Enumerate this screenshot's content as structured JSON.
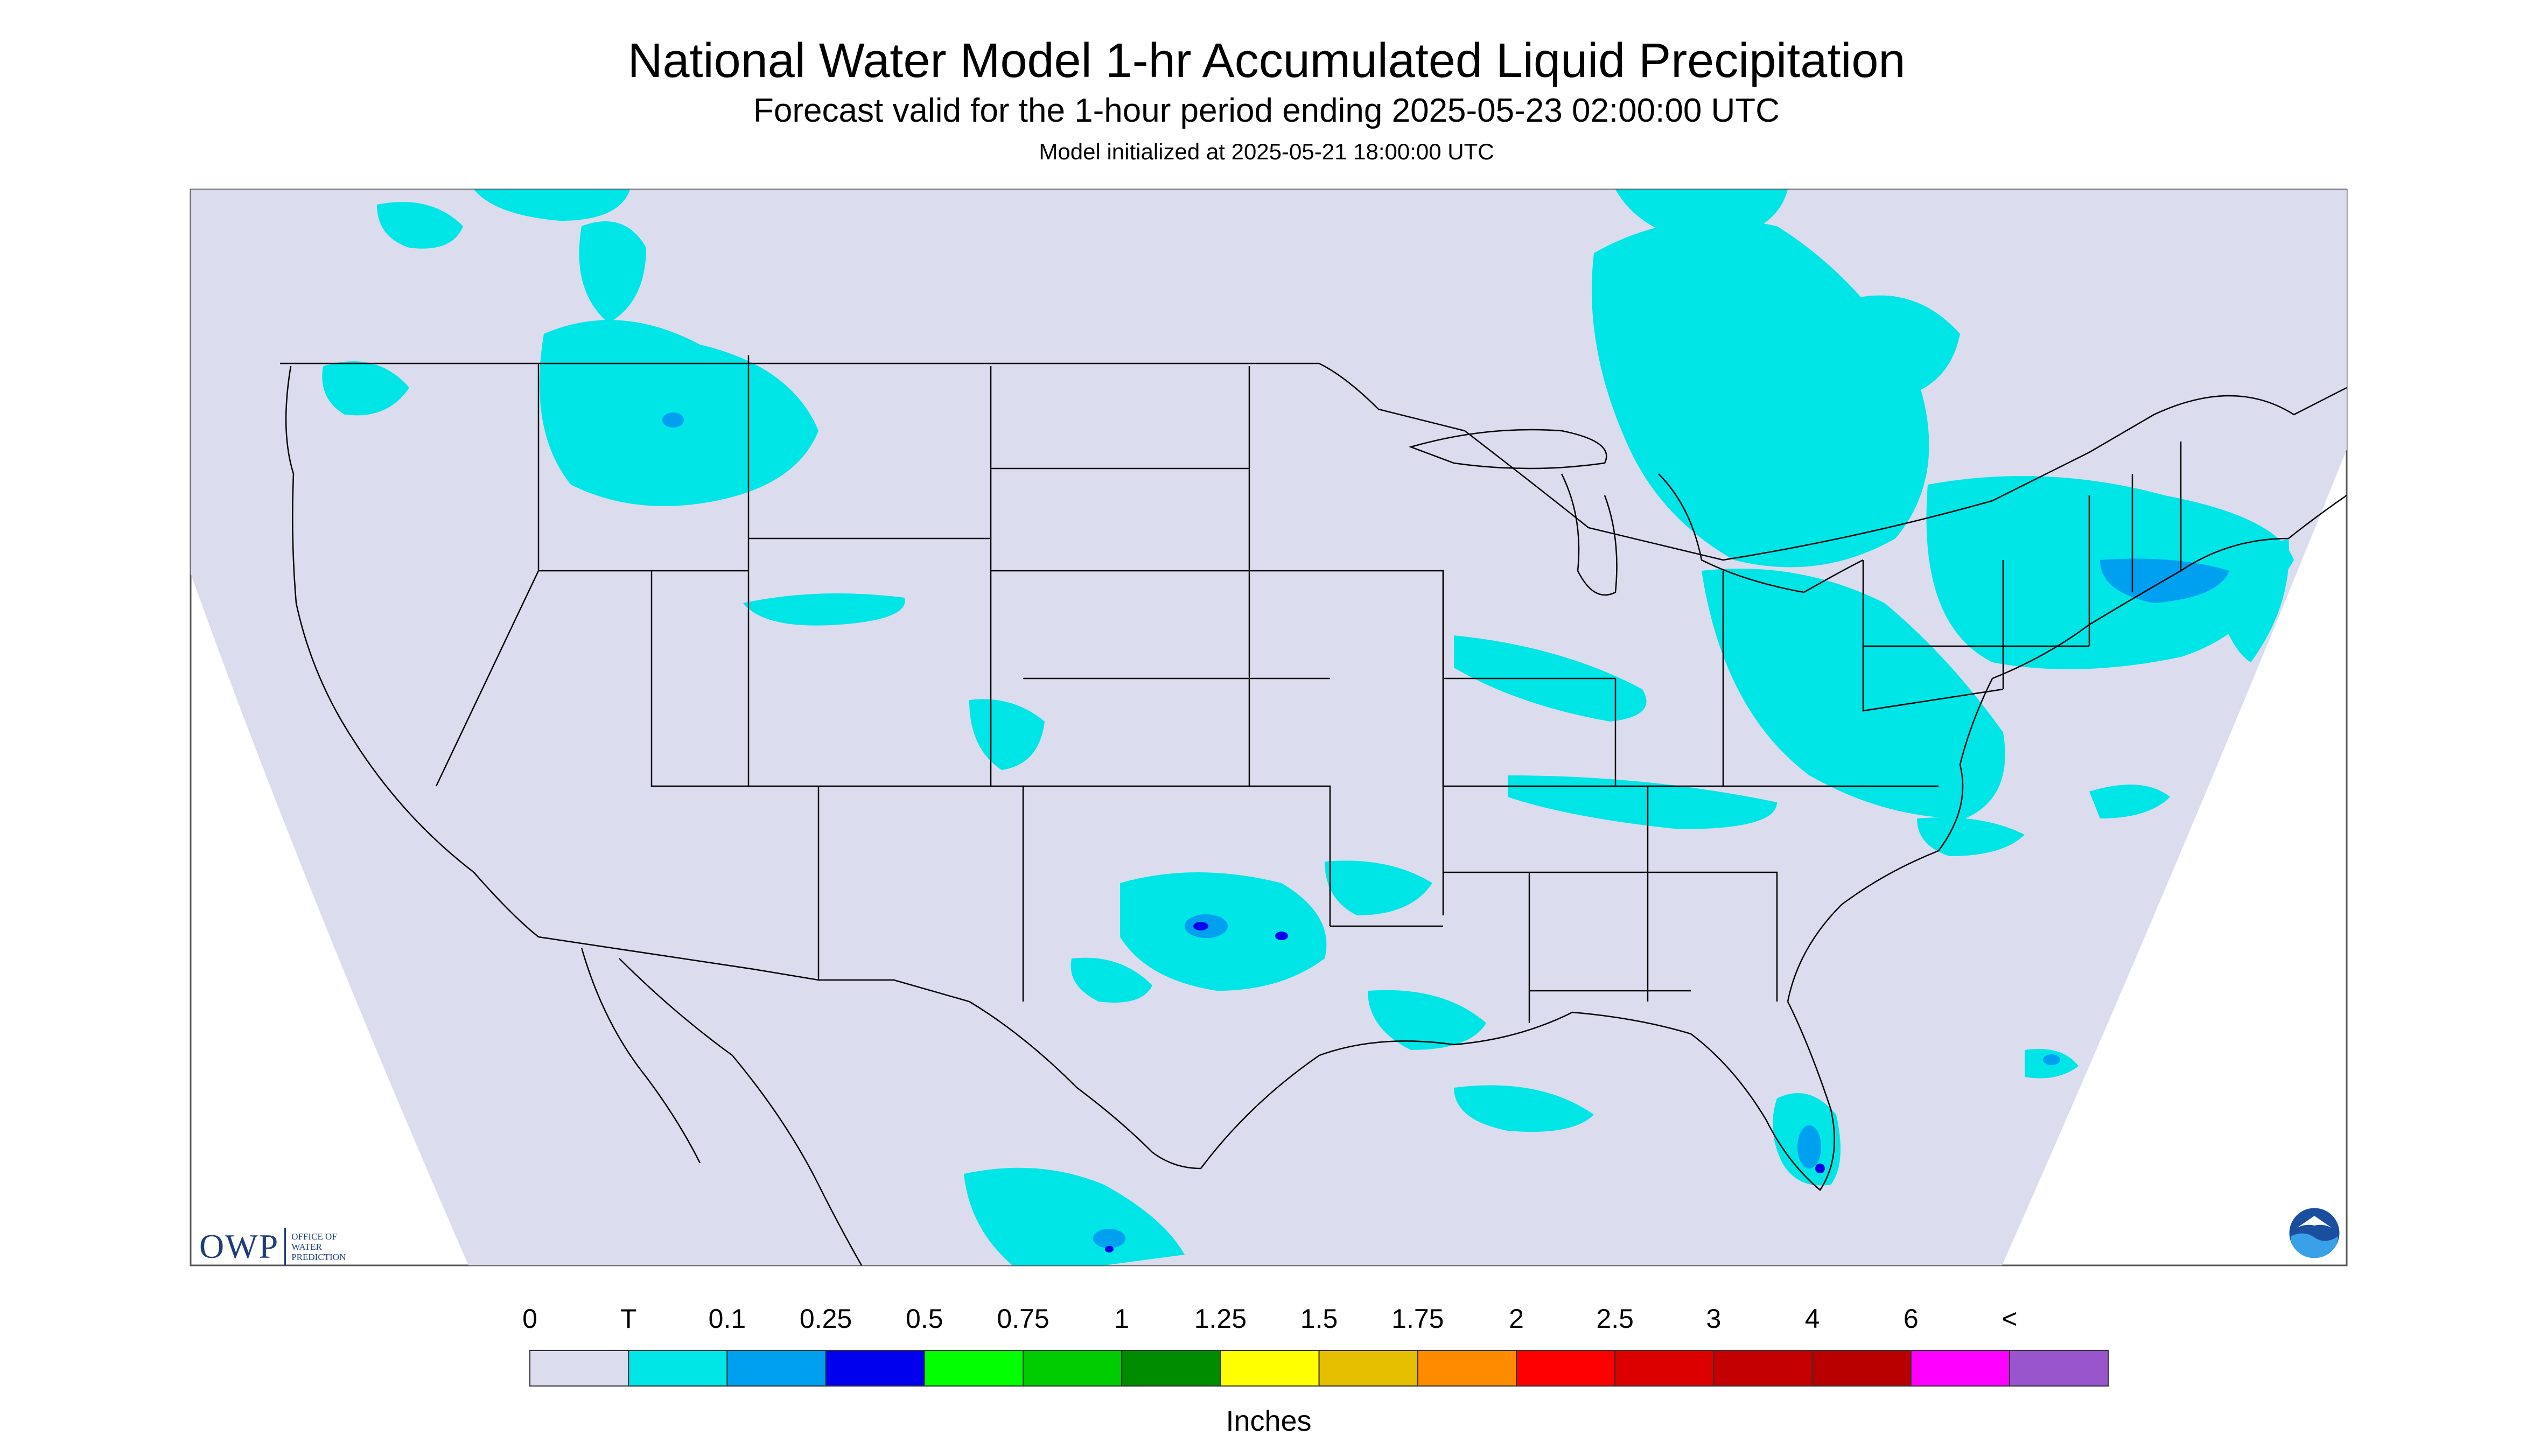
{
  "header": {
    "title": "National Water Model 1-hr Accumulated Liquid Precipitation",
    "subtitle": "Forecast valid for the 1-hour period ending 2025-05-23 02:00:00 UTC",
    "init_line": "Model initialized at 2025-05-21 18:00:00 UTC"
  },
  "colors": {
    "background_no_precip": "#dcdcef",
    "outside_domain": "#ffffff",
    "boundaries": "#000000",
    "logo_blue": "#1f3d7a"
  },
  "legend": {
    "labels": [
      "0",
      "T",
      "0.1",
      "0.25",
      "0.5",
      "0.75",
      "1",
      "1.25",
      "1.5",
      "1.75",
      "2",
      "2.5",
      "3",
      "4",
      "6",
      "<"
    ],
    "colors": [
      "#dcdcef",
      "#00e5e5",
      "#00a0f0",
      "#0000ee",
      "#00ff00",
      "#00cc00",
      "#008c00",
      "#ffff00",
      "#e6c000",
      "#ff8c00",
      "#ff0000",
      "#dd0000",
      "#c40000",
      "#b80000",
      "#ff00ff",
      "#9955cc"
    ],
    "units": "Inches"
  },
  "logos": {
    "owp_mark": "OWP",
    "owp_text": [
      "OFFICE OF",
      "WATER",
      "PREDICTION"
    ],
    "noaa_icon": "noaa-logo-icon"
  },
  "map": {
    "region": "Contiguous United States",
    "precip_areas": [
      {
        "region": "Northern Rockies / Idaho-Montana",
        "category": "T",
        "max_category": "0.1"
      },
      {
        "region": "Pacific Northwest",
        "category": "T"
      },
      {
        "region": "Upper Great Lakes / Ontario",
        "category": "T"
      },
      {
        "region": "Northeast / New England",
        "category": "T",
        "max_category": "0.1"
      },
      {
        "region": "Ohio Valley / Mid-Atlantic",
        "category": "T"
      },
      {
        "region": "Oklahoma / North Texas",
        "category": "T",
        "max_category": "0.25"
      },
      {
        "region": "Louisiana Coast",
        "category": "T"
      },
      {
        "region": "South Florida",
        "category": "T",
        "max_category": "0.25"
      },
      {
        "region": "Northern Mexico",
        "category": "T",
        "max_category": "0.25"
      },
      {
        "region": "Colorado / Kansas",
        "category": "T"
      }
    ]
  }
}
